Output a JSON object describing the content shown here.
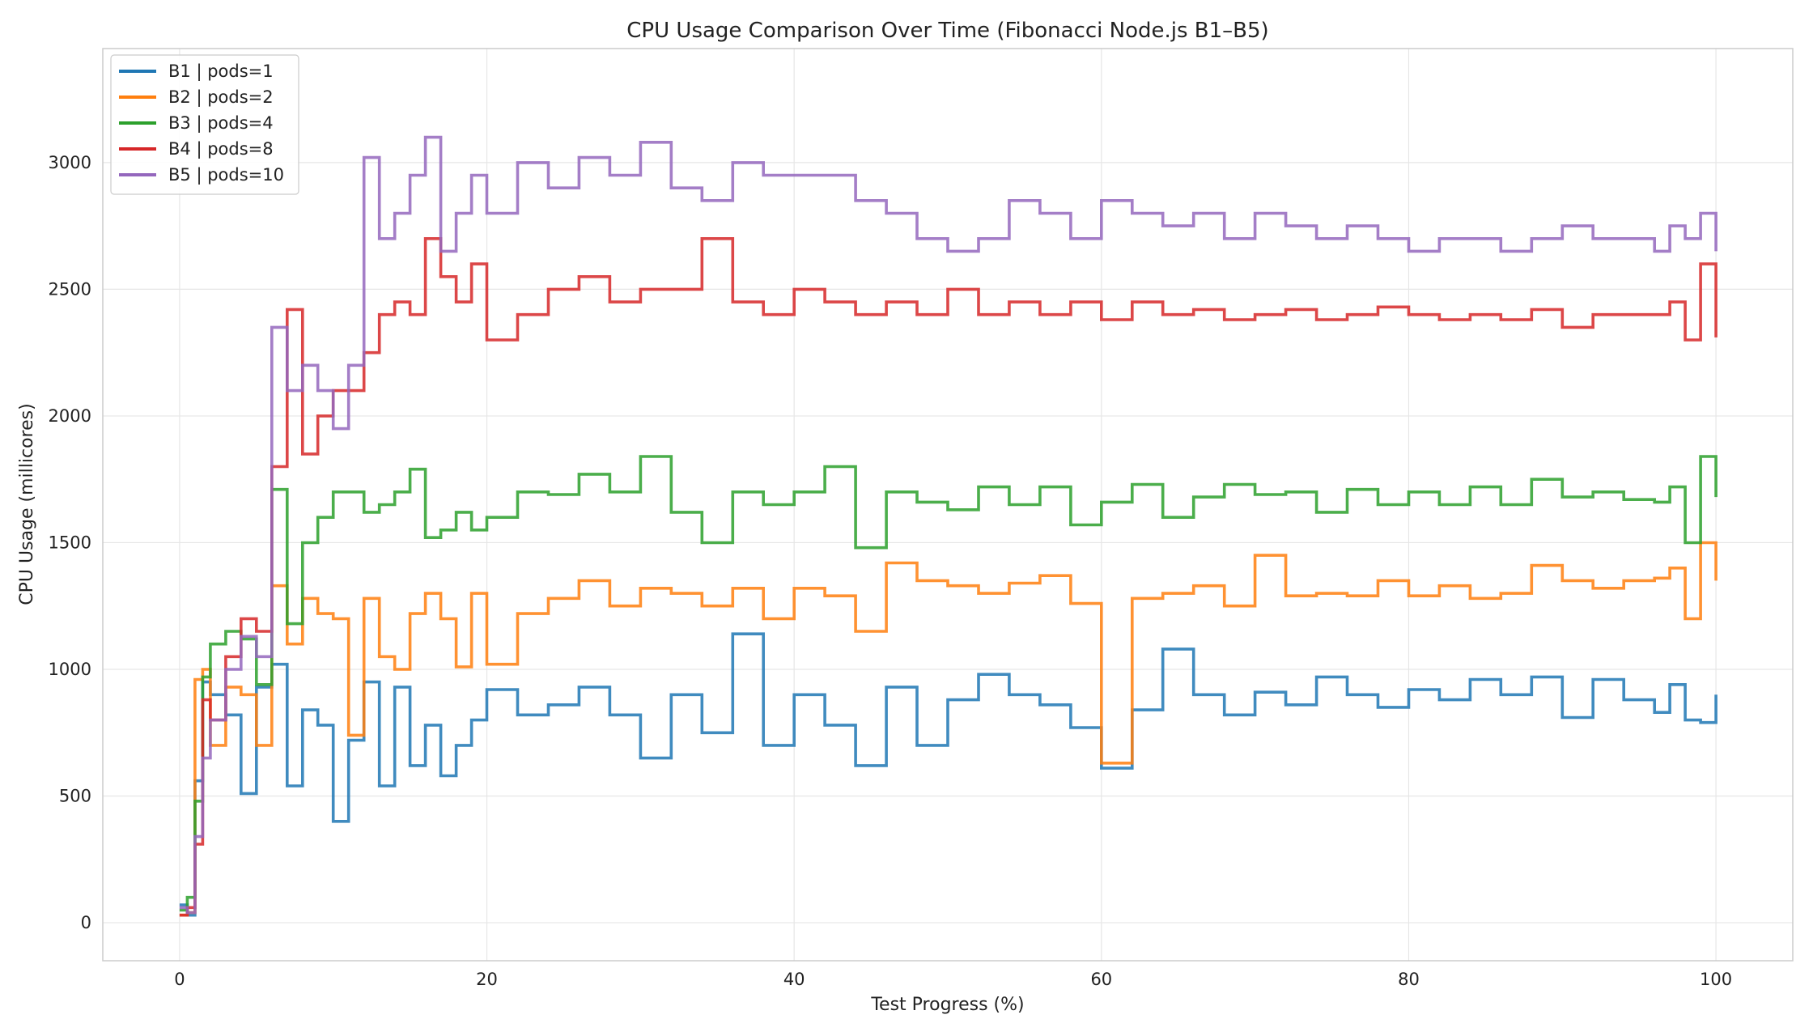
{
  "chart_data": {
    "type": "line",
    "title": "CPU Usage Comparison Over Time (Fibonacci Node.js B1–B5)",
    "xlabel": "Test Progress (%)",
    "ylabel": "CPU Usage (millicores)",
    "xlim": [
      -5,
      105
    ],
    "ylim": [
      -150,
      3450
    ],
    "xticks": [
      0,
      20,
      40,
      60,
      80,
      100
    ],
    "yticks": [
      0,
      500,
      1000,
      1500,
      2000,
      2500,
      3000
    ],
    "grid": true,
    "legend_position": "top-left",
    "step": true,
    "x": [
      0,
      0.5,
      1,
      1.5,
      2,
      3,
      4,
      5,
      6,
      7,
      8,
      9,
      10,
      11,
      12,
      13,
      14,
      15,
      16,
      17,
      18,
      19,
      20,
      22,
      24,
      26,
      28,
      30,
      32,
      34,
      36,
      38,
      40,
      42,
      44,
      46,
      48,
      50,
      52,
      54,
      56,
      58,
      60,
      62,
      64,
      66,
      68,
      70,
      72,
      74,
      76,
      78,
      80,
      82,
      84,
      86,
      88,
      90,
      92,
      94,
      96,
      97,
      98,
      99,
      100
    ],
    "series": [
      {
        "name": "B1 | pods=1",
        "color": "#1f77b4",
        "values": [
          70,
          30,
          560,
          950,
          900,
          820,
          510,
          930,
          1020,
          540,
          840,
          780,
          400,
          720,
          950,
          540,
          930,
          620,
          780,
          580,
          700,
          800,
          920,
          820,
          860,
          930,
          820,
          650,
          900,
          750,
          1140,
          700,
          900,
          780,
          620,
          930,
          700,
          880,
          980,
          900,
          860,
          770,
          610,
          840,
          1080,
          900,
          820,
          910,
          860,
          970,
          900,
          850,
          920,
          880,
          960,
          900,
          970,
          810,
          960,
          880,
          830,
          940,
          800,
          790,
          900
        ]
      },
      {
        "name": "B2 | pods=2",
        "color": "#ff7f0e",
        "values": [
          30,
          40,
          960,
          1000,
          700,
          930,
          900,
          700,
          1330,
          1100,
          1280,
          1220,
          1200,
          740,
          1280,
          1050,
          1000,
          1220,
          1300,
          1200,
          1010,
          1300,
          1020,
          1220,
          1280,
          1350,
          1250,
          1320,
          1300,
          1250,
          1320,
          1200,
          1320,
          1290,
          1150,
          1420,
          1350,
          1330,
          1300,
          1340,
          1370,
          1260,
          630,
          1280,
          1300,
          1330,
          1250,
          1450,
          1290,
          1300,
          1290,
          1350,
          1290,
          1330,
          1280,
          1300,
          1410,
          1350,
          1320,
          1350,
          1360,
          1400,
          1200,
          1500,
          1350
        ]
      },
      {
        "name": "B3 | pods=4",
        "color": "#2ca02c",
        "values": [
          50,
          100,
          480,
          970,
          1100,
          1150,
          1120,
          940,
          1710,
          1180,
          1500,
          1600,
          1700,
          1700,
          1620,
          1650,
          1700,
          1790,
          1520,
          1550,
          1620,
          1550,
          1600,
          1700,
          1690,
          1770,
          1700,
          1840,
          1620,
          1500,
          1700,
          1650,
          1700,
          1800,
          1480,
          1700,
          1660,
          1630,
          1720,
          1650,
          1720,
          1570,
          1660,
          1730,
          1600,
          1680,
          1730,
          1690,
          1700,
          1620,
          1710,
          1650,
          1700,
          1650,
          1720,
          1650,
          1750,
          1680,
          1700,
          1670,
          1660,
          1720,
          1500,
          1840,
          1680
        ]
      },
      {
        "name": "B4 | pods=8",
        "color": "#d62728",
        "values": [
          30,
          60,
          310,
          880,
          800,
          1050,
          1200,
          1150,
          1800,
          2420,
          1850,
          2000,
          2100,
          2100,
          2250,
          2400,
          2450,
          2400,
          2700,
          2550,
          2450,
          2600,
          2300,
          2400,
          2500,
          2550,
          2450,
          2500,
          2500,
          2700,
          2450,
          2400,
          2500,
          2450,
          2400,
          2450,
          2400,
          2500,
          2400,
          2450,
          2400,
          2450,
          2380,
          2450,
          2400,
          2420,
          2380,
          2400,
          2420,
          2380,
          2400,
          2430,
          2400,
          2380,
          2400,
          2380,
          2420,
          2350,
          2400,
          2400,
          2400,
          2450,
          2300,
          2600,
          2310
        ]
      },
      {
        "name": "B5 | pods=10",
        "color": "#9467bd",
        "values": [
          60,
          40,
          340,
          650,
          800,
          1000,
          1130,
          1050,
          2350,
          2100,
          2200,
          2100,
          1950,
          2200,
          3020,
          2700,
          2800,
          2950,
          3100,
          2650,
          2800,
          2950,
          2800,
          3000,
          2900,
          3020,
          2950,
          3080,
          2900,
          2850,
          3000,
          2950,
          2950,
          2950,
          2850,
          2800,
          2700,
          2650,
          2700,
          2850,
          2800,
          2700,
          2850,
          2800,
          2750,
          2800,
          2700,
          2800,
          2750,
          2700,
          2750,
          2700,
          2650,
          2700,
          2700,
          2650,
          2700,
          2750,
          2700,
          2700,
          2650,
          2750,
          2700,
          2800,
          2650
        ]
      }
    ]
  }
}
